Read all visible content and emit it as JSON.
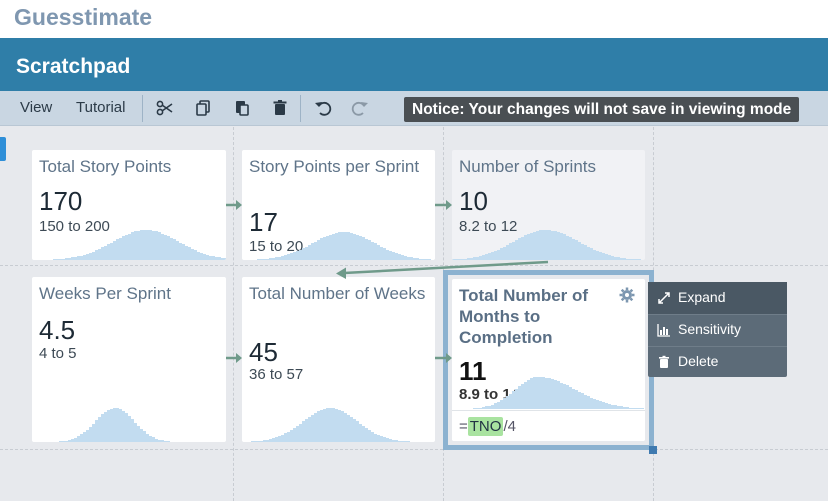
{
  "app": {
    "brand": "Guesstimate",
    "title": "Scratchpad"
  },
  "toolbar": {
    "view_label": "View",
    "tutorial_label": "Tutorial",
    "notice": "Notice: Your changes will not save in viewing mode",
    "icons": [
      "scissors-icon",
      "copy-icon",
      "paste-icon",
      "trash-icon",
      "undo-icon",
      "redo-icon"
    ]
  },
  "colors": {
    "header": "#2f7ea8",
    "accent": "#2f8fd8",
    "distribution": "#c2dcf0",
    "token": "#a9e3a0",
    "arrow": "#6f9a8a"
  },
  "cards": [
    {
      "title": "Total Story Points",
      "mean": "170",
      "range": "150 to 200"
    },
    {
      "title": "Story Points per Sprint",
      "mean": "17",
      "range": "15 to 20"
    },
    {
      "title": "Number of Sprints",
      "mean": "10",
      "range": "8.2 to 12"
    },
    {
      "title": "Weeks Per Sprint",
      "mean": "4.5",
      "range": "4 to 5"
    },
    {
      "title": "Total Number of Weeks",
      "mean": "45",
      "range": "36 to 57"
    },
    {
      "title": "Total Number of Months to Completion",
      "mean": "11",
      "range": "8.9 to 14",
      "formula_prefix": "=",
      "formula_token": "TNO",
      "formula_suffix": "/4"
    }
  ],
  "menu": {
    "items": [
      "Expand",
      "Sensitivity",
      "Delete"
    ]
  }
}
